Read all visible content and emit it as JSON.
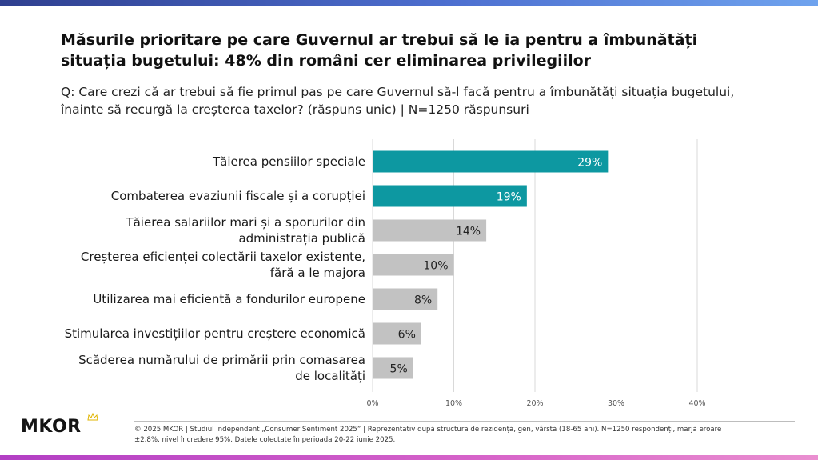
{
  "header": {
    "title": "Măsurile prioritare pe care Guvernul ar trebui să le ia pentru a îmbunătăți situația bugetului: 48% din români cer eliminarea privilegiilor",
    "subtitle": "Q: Care crezi că ar trebui să fie primul pas pe care Guvernul să-l facă pentru a îmbunătăți situația bugetului, înainte să recurgă la creșterea taxelor? (răspuns unic) | N=1250 răspunsuri"
  },
  "chart_data": {
    "type": "bar",
    "orientation": "horizontal",
    "title": "",
    "xlabel": "",
    "ylabel": "",
    "xlim": [
      0,
      40
    ],
    "x_ticks": [
      "0%",
      "10%",
      "20%",
      "30%",
      "40%"
    ],
    "grid": true,
    "categories": [
      [
        "Tăierea pensiilor speciale"
      ],
      [
        "Combaterea evaziunii fiscale și a corupției"
      ],
      [
        "Tăierea salariilor mari și a sporurilor din",
        "administrația publică"
      ],
      [
        "Creșterea eficienței colectării taxelor existente,",
        "fără a le majora"
      ],
      [
        "Utilizarea mai eficientă a fondurilor europene"
      ],
      [
        "Stimularea investițiilor pentru creștere economică"
      ],
      [
        "Scăderea numărului de primării prin comasarea",
        "de localități"
      ]
    ],
    "values": [
      29,
      19,
      14,
      10,
      8,
      6,
      5
    ],
    "value_labels": [
      "29%",
      "19%",
      "14%",
      "10%",
      "8%",
      "6%",
      "5%"
    ],
    "bar_colors": [
      "#0d98a1",
      "#0d98a1",
      "#c2c2c2",
      "#c2c2c2",
      "#c2c2c2",
      "#c2c2c2",
      "#c2c2c2"
    ],
    "highlight_label_color": "#ffffff",
    "default_label_color": "#222222",
    "grid_color": "#d9d9d9"
  },
  "footer": {
    "note_line1": "© 2025 MKOR | Studiul independent „Consumer Sentiment 2025” | Reprezentativ după structura de rezidență, gen, vârstă (18-65 ani). N=1250 respondenți, marjă eroare",
    "note_line2": "±2.8%, nivel încredere 95%. Datele colectate în perioada 20-22 iunie 2025."
  },
  "logo": {
    "text": "MKOR",
    "icon": "crown-icon"
  }
}
